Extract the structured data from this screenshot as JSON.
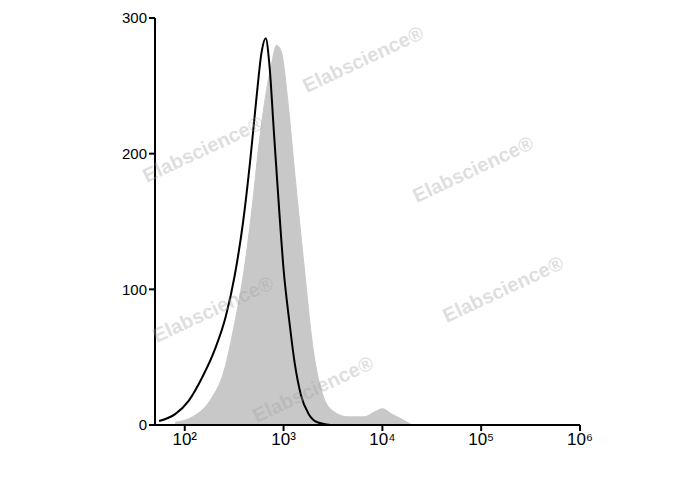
{
  "chart_data": {
    "type": "histogram overlay",
    "log": "x",
    "xlim": [
      50,
      1000000
    ],
    "xticks": [
      {
        "value": 100,
        "label": "10²"
      },
      {
        "value": 1000,
        "label": "10³"
      },
      {
        "value": 10000,
        "label": "10⁴"
      },
      {
        "value": 100000,
        "label": "10⁵"
      },
      {
        "value": 1000000,
        "label": "10⁶"
      }
    ],
    "ylim": [
      0,
      300
    ],
    "yticks": [
      0,
      100,
      200,
      300
    ],
    "grid": false,
    "annotations": [
      "Elabscience®"
    ],
    "series": [
      {
        "type": "area",
        "color": "#c8c8c8",
        "x": [
          80,
          120,
          180,
          250,
          320,
          400,
          480,
          560,
          650,
          750,
          850,
          950,
          1100,
          1300,
          1600,
          2000,
          2500,
          3200,
          4500,
          6500,
          8500,
          10000,
          12500,
          16000,
          20000
        ],
        "values": [
          2,
          6,
          18,
          40,
          75,
          115,
          160,
          205,
          240,
          265,
          280,
          275,
          240,
          185,
          120,
          55,
          22,
          10,
          6,
          6,
          10,
          12,
          8,
          4,
          0
        ]
      },
      {
        "type": "line",
        "color": "#000000",
        "x": [
          55,
          80,
          110,
          150,
          200,
          260,
          320,
          390,
          460,
          530,
          600,
          660,
          720,
          800,
          900,
          1000,
          1150,
          1300,
          1500,
          1800,
          2200,
          3000
        ],
        "values": [
          3,
          8,
          18,
          35,
          55,
          80,
          110,
          150,
          195,
          240,
          275,
          285,
          265,
          215,
          160,
          115,
          75,
          45,
          22,
          8,
          2,
          0
        ]
      }
    ]
  }
}
